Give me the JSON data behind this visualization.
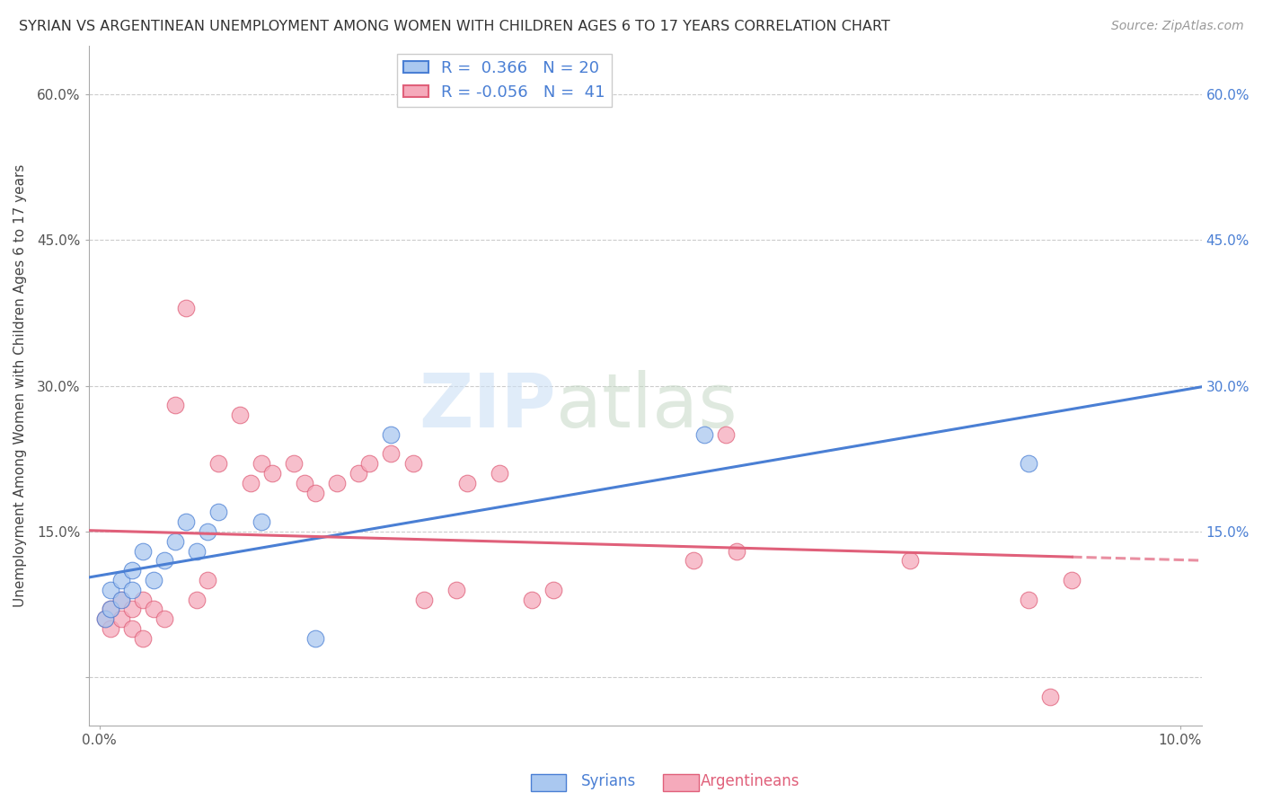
{
  "title": "SYRIAN VS ARGENTINEAN UNEMPLOYMENT AMONG WOMEN WITH CHILDREN AGES 6 TO 17 YEARS CORRELATION CHART",
  "source": "Source: ZipAtlas.com",
  "ylabel": "Unemployment Among Women with Children Ages 6 to 17 years",
  "xlim": [
    -0.001,
    0.102
  ],
  "ylim": [
    -0.05,
    0.65
  ],
  "x_ticks": [
    0.0,
    0.1
  ],
  "x_tick_labels": [
    "0.0%",
    "10.0%"
  ],
  "y_ticks": [
    0.0,
    0.15,
    0.3,
    0.45,
    0.6
  ],
  "y_tick_labels_left": [
    "",
    "15.0%",
    "30.0%",
    "45.0%",
    "60.0%"
  ],
  "y_tick_labels_right": [
    "",
    "15.0%",
    "30.0%",
    "45.0%",
    "60.0%"
  ],
  "background_color": "#ffffff",
  "grid_color": "#cccccc",
  "syrian_R": 0.366,
  "syrian_N": 20,
  "argentinean_R": -0.056,
  "argentinean_N": 41,
  "syrian_color": "#aac8f0",
  "argentinean_color": "#f5aabb",
  "syrian_line_color": "#4a7fd4",
  "argentinean_line_color": "#e0607a",
  "syrians_x": [
    0.0005,
    0.001,
    0.001,
    0.002,
    0.002,
    0.003,
    0.003,
    0.004,
    0.005,
    0.006,
    0.007,
    0.008,
    0.009,
    0.01,
    0.011,
    0.015,
    0.02,
    0.027,
    0.056,
    0.086
  ],
  "syrians_y": [
    0.06,
    0.07,
    0.09,
    0.08,
    0.1,
    0.09,
    0.11,
    0.13,
    0.1,
    0.12,
    0.14,
    0.16,
    0.13,
    0.15,
    0.17,
    0.16,
    0.04,
    0.25,
    0.25,
    0.22
  ],
  "argentineans_x": [
    0.0005,
    0.001,
    0.001,
    0.002,
    0.002,
    0.003,
    0.003,
    0.004,
    0.004,
    0.005,
    0.006,
    0.007,
    0.008,
    0.009,
    0.01,
    0.011,
    0.013,
    0.014,
    0.015,
    0.016,
    0.018,
    0.019,
    0.02,
    0.022,
    0.024,
    0.025,
    0.027,
    0.029,
    0.03,
    0.033,
    0.034,
    0.037,
    0.04,
    0.042,
    0.055,
    0.058,
    0.059,
    0.075,
    0.086,
    0.088,
    0.09
  ],
  "argentineans_y": [
    0.06,
    0.05,
    0.07,
    0.06,
    0.08,
    0.07,
    0.05,
    0.08,
    0.04,
    0.07,
    0.06,
    0.28,
    0.38,
    0.08,
    0.1,
    0.22,
    0.27,
    0.2,
    0.22,
    0.21,
    0.22,
    0.2,
    0.19,
    0.2,
    0.21,
    0.22,
    0.23,
    0.22,
    0.08,
    0.09,
    0.2,
    0.21,
    0.08,
    0.09,
    0.12,
    0.25,
    0.13,
    0.12,
    0.08,
    -0.02,
    0.1
  ]
}
